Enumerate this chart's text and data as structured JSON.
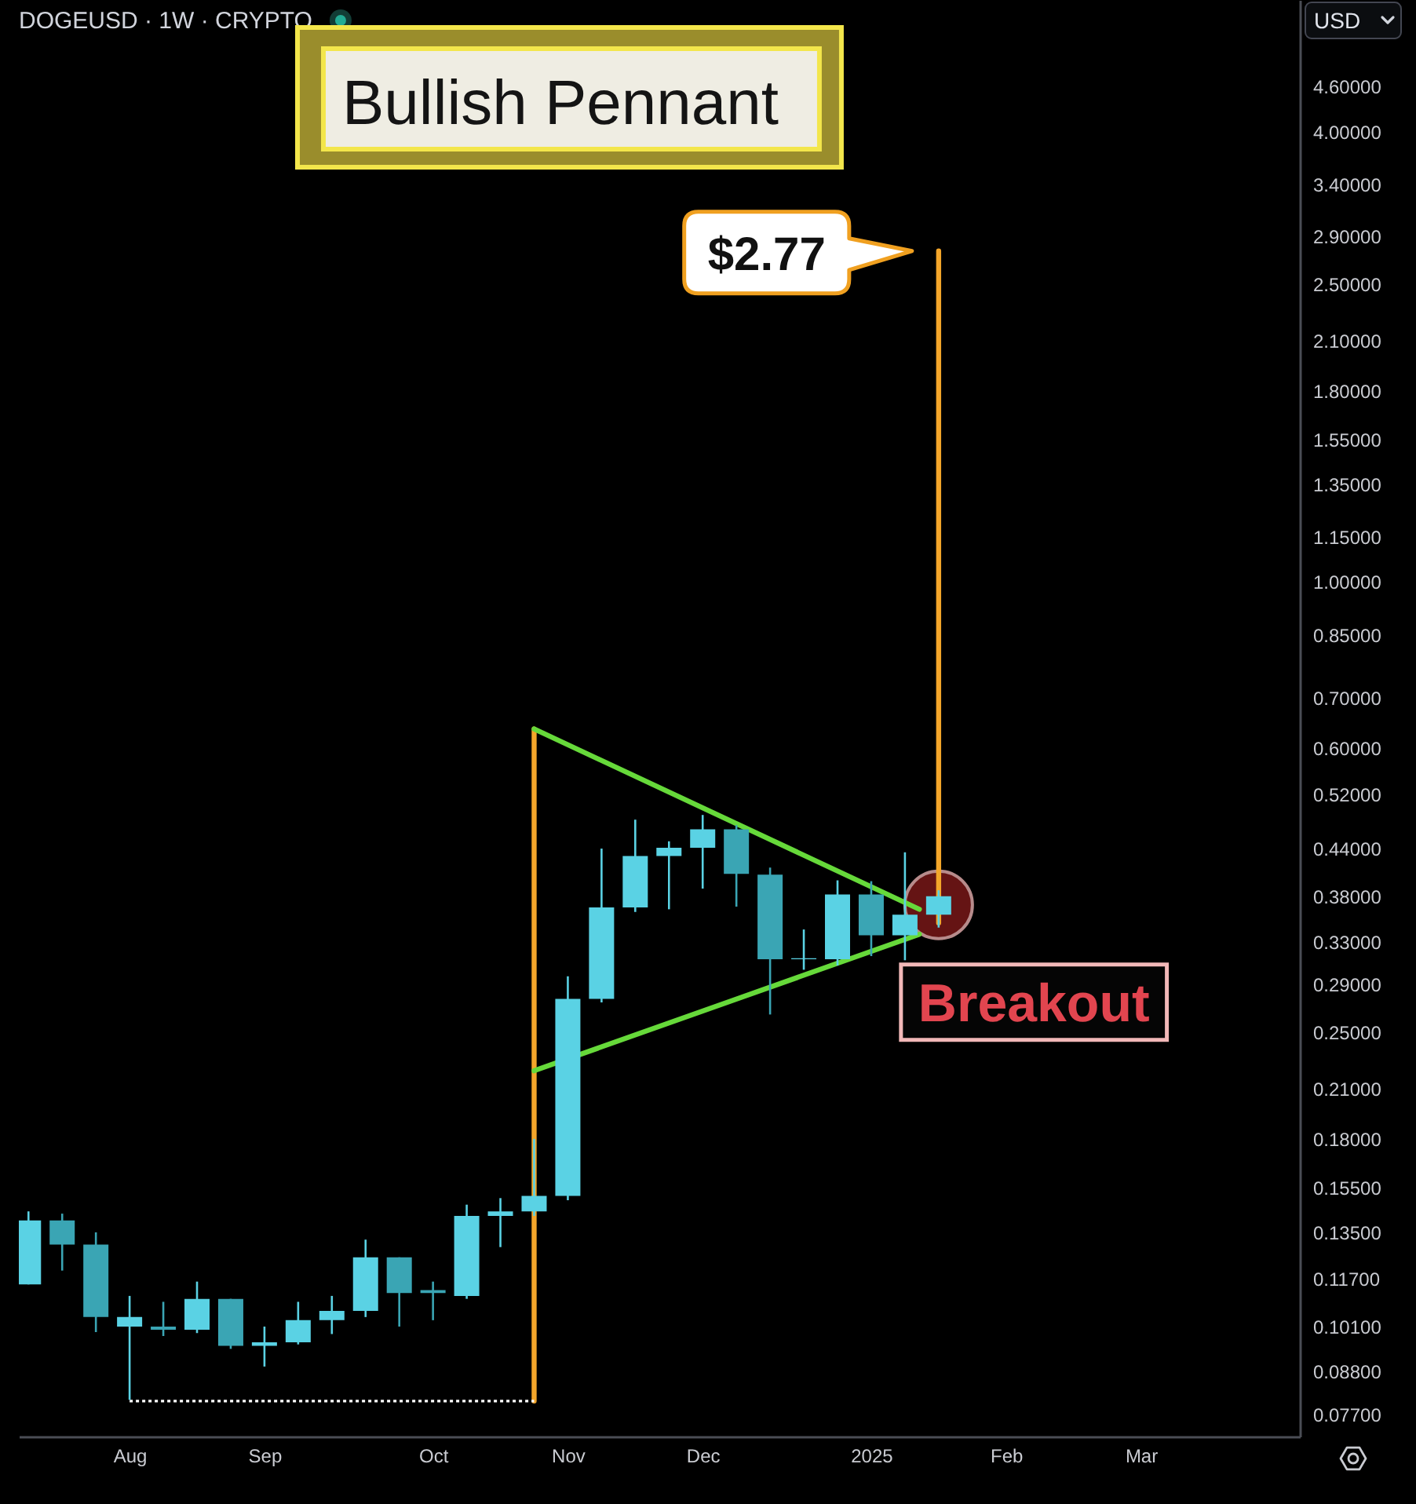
{
  "chart_data": {
    "type": "candlestick",
    "title": "Bullish Pennant",
    "subtitle": "DOGEUSD · 1W · CRYPTO",
    "ylabel": "USD",
    "x": [
      "2024-07-15",
      "2024-07-22",
      "2024-07-29",
      "2024-08-05",
      "2024-08-12",
      "2024-08-19",
      "2024-08-26",
      "2024-09-02",
      "2024-09-09",
      "2024-09-16",
      "2024-09-23",
      "2024-09-30",
      "2024-10-07",
      "2024-10-14",
      "2024-10-21",
      "2024-10-28",
      "2024-11-04",
      "2024-11-11",
      "2024-11-18",
      "2024-11-25",
      "2024-12-02",
      "2024-12-09",
      "2024-12-16",
      "2024-12-23",
      "2024-12-30",
      "2025-01-06",
      "2025-01-13",
      "2025-01-20"
    ],
    "ohlc": [
      [
        0.115,
        0.144,
        0.115,
        0.14
      ],
      [
        0.14,
        0.143,
        0.12,
        0.13
      ],
      [
        0.13,
        0.135,
        0.0993,
        0.104
      ],
      [
        0.101,
        0.111,
        0.0806,
        0.104
      ],
      [
        0.101,
        0.109,
        0.0981,
        0.1
      ],
      [
        0.1,
        0.116,
        0.099,
        0.11
      ],
      [
        0.11,
        0.11,
        0.0943,
        0.0952
      ],
      [
        0.0952,
        0.101,
        0.0893,
        0.0962
      ],
      [
        0.0962,
        0.109,
        0.0956,
        0.103
      ],
      [
        0.103,
        0.111,
        0.0987,
        0.106
      ],
      [
        0.106,
        0.132,
        0.104,
        0.125
      ],
      [
        0.125,
        0.125,
        0.101,
        0.112
      ],
      [
        0.113,
        0.116,
        0.103,
        0.112
      ],
      [
        0.111,
        0.147,
        0.11,
        0.142
      ],
      [
        0.142,
        0.15,
        0.129,
        0.144
      ],
      [
        0.144,
        0.18,
        0.142,
        0.151
      ],
      [
        0.151,
        0.297,
        0.149,
        0.277
      ],
      [
        0.277,
        0.44,
        0.274,
        0.367
      ],
      [
        0.367,
        0.481,
        0.362,
        0.43
      ],
      [
        0.43,
        0.45,
        0.365,
        0.441
      ],
      [
        0.441,
        0.488,
        0.389,
        0.467
      ],
      [
        0.467,
        0.473,
        0.368,
        0.407
      ],
      [
        0.406,
        0.415,
        0.264,
        0.313
      ],
      [
        0.313,
        0.343,
        0.303,
        0.314
      ],
      [
        0.313,
        0.399,
        0.307,
        0.382
      ],
      [
        0.382,
        0.398,
        0.316,
        0.337
      ],
      [
        0.337,
        0.435,
        0.312,
        0.359
      ],
      [
        0.359,
        0.387,
        0.345,
        0.38
      ]
    ],
    "colors": [
      "#5ad2e4",
      "#3aa5b4",
      "#3aa5b4",
      "#5ad2e4",
      "#3aa5b4",
      "#5ad2e4",
      "#3aa5b4",
      "#5ad2e4",
      "#5ad2e4",
      "#5ad2e4",
      "#5ad2e4",
      "#3aa5b4",
      "#3aa5b4",
      "#5ad2e4",
      "#5ad2e4",
      "#5ad2e4",
      "#5ad2e4",
      "#5ad2e4",
      "#5ad2e4",
      "#5ad2e4",
      "#5ad2e4",
      "#3aa5b4",
      "#3aa5b4",
      "#5ad2e4",
      "#5ad2e4",
      "#3aa5b4",
      "#5ad2e4",
      "#5ad2e4"
    ],
    "series": [
      {
        "type": "scatter",
        "color": "#6e1616",
        "marker": "circle",
        "x": [
          "2025-01-20"
        ],
        "values": [
          0.37
        ]
      },
      {
        "type": "line",
        "color": "#f4a62a",
        "x": [
          "2024-10-28",
          "2024-10-28"
        ],
        "values": [
          0.0803,
          0.636
        ]
      },
      {
        "type": "line",
        "color": "#f4a62a",
        "x": [
          "2025-01-20",
          "2025-01-20"
        ],
        "values": [
          0.35,
          2.77
        ]
      },
      {
        "type": "line",
        "color": "#66d93a",
        "x": [
          "2024-10-28",
          "2025-01-16"
        ],
        "values": [
          0.636,
          0.365
        ]
      },
      {
        "type": "line",
        "color": "#66d93a",
        "x": [
          "2024-10-28",
          "2025-01-16"
        ],
        "values": [
          0.222,
          0.338
        ]
      },
      {
        "type": "line",
        "color": "#ffffff",
        "line_style": "dotted",
        "x": [
          "2024-08-05",
          "2024-10-28"
        ],
        "values": [
          0.0803,
          0.0803
        ]
      }
    ],
    "annotations": [
      {
        "text": "$2.77",
        "x": "2025-01-20",
        "y": 2.77
      },
      {
        "text": "Breakout",
        "x": "2025-01-20",
        "y": 0.37
      }
    ],
    "xlim": [
      "2024-07-13",
      "2025-04-05"
    ],
    "xticks": [
      {
        "value": "2024-08-05",
        "label": "Aug"
      },
      {
        "value": "2024-09-02",
        "label": "Sep"
      },
      {
        "value": "2024-10-07",
        "label": "Oct"
      },
      {
        "value": "2024-11-04",
        "label": "Nov"
      },
      {
        "value": "2024-12-02",
        "label": "Dec"
      },
      {
        "value": "2025-01-06",
        "label": "2025"
      },
      {
        "value": "2025-02-03",
        "label": "Feb"
      },
      {
        "value": "2025-03-03",
        "label": "Mar"
      }
    ],
    "ylim": [
      0.072,
      6
    ],
    "yticks": [
      {
        "value": 0.077,
        "label": "0.07700"
      },
      {
        "value": 0.088,
        "label": "0.08800"
      },
      {
        "value": 0.101,
        "label": "0.10100"
      },
      {
        "value": 0.117,
        "label": "0.11700"
      },
      {
        "value": 0.135,
        "label": "0.13500"
      },
      {
        "value": 0.155,
        "label": "0.15500"
      },
      {
        "value": 0.18,
        "label": "0.18000"
      },
      {
        "value": 0.21,
        "label": "0.21000"
      },
      {
        "value": 0.25,
        "label": "0.25000"
      },
      {
        "value": 0.29,
        "label": "0.29000"
      },
      {
        "value": 0.33,
        "label": "0.33000"
      },
      {
        "value": 0.38,
        "label": "0.38000"
      },
      {
        "value": 0.44,
        "label": "0.44000"
      },
      {
        "value": 0.52,
        "label": "0.52000"
      },
      {
        "value": 0.6,
        "label": "0.60000"
      },
      {
        "value": 0.7,
        "label": "0.70000"
      },
      {
        "value": 0.85,
        "label": "0.85000"
      },
      {
        "value": 1,
        "label": "1.00000"
      },
      {
        "value": 1.15,
        "label": "1.15000"
      },
      {
        "value": 1.35,
        "label": "1.35000"
      },
      {
        "value": 1.55,
        "label": "1.55000"
      },
      {
        "value": 1.8,
        "label": "1.80000"
      },
      {
        "value": 2.1,
        "label": "2.10000"
      },
      {
        "value": 2.5,
        "label": "2.50000"
      },
      {
        "value": 2.9,
        "label": "2.90000"
      },
      {
        "value": 3.4,
        "label": "3.40000"
      },
      {
        "value": 4,
        "label": "4.00000"
      },
      {
        "value": 4.6,
        "label": "4.60000"
      }
    ],
    "log": true
  }
}
